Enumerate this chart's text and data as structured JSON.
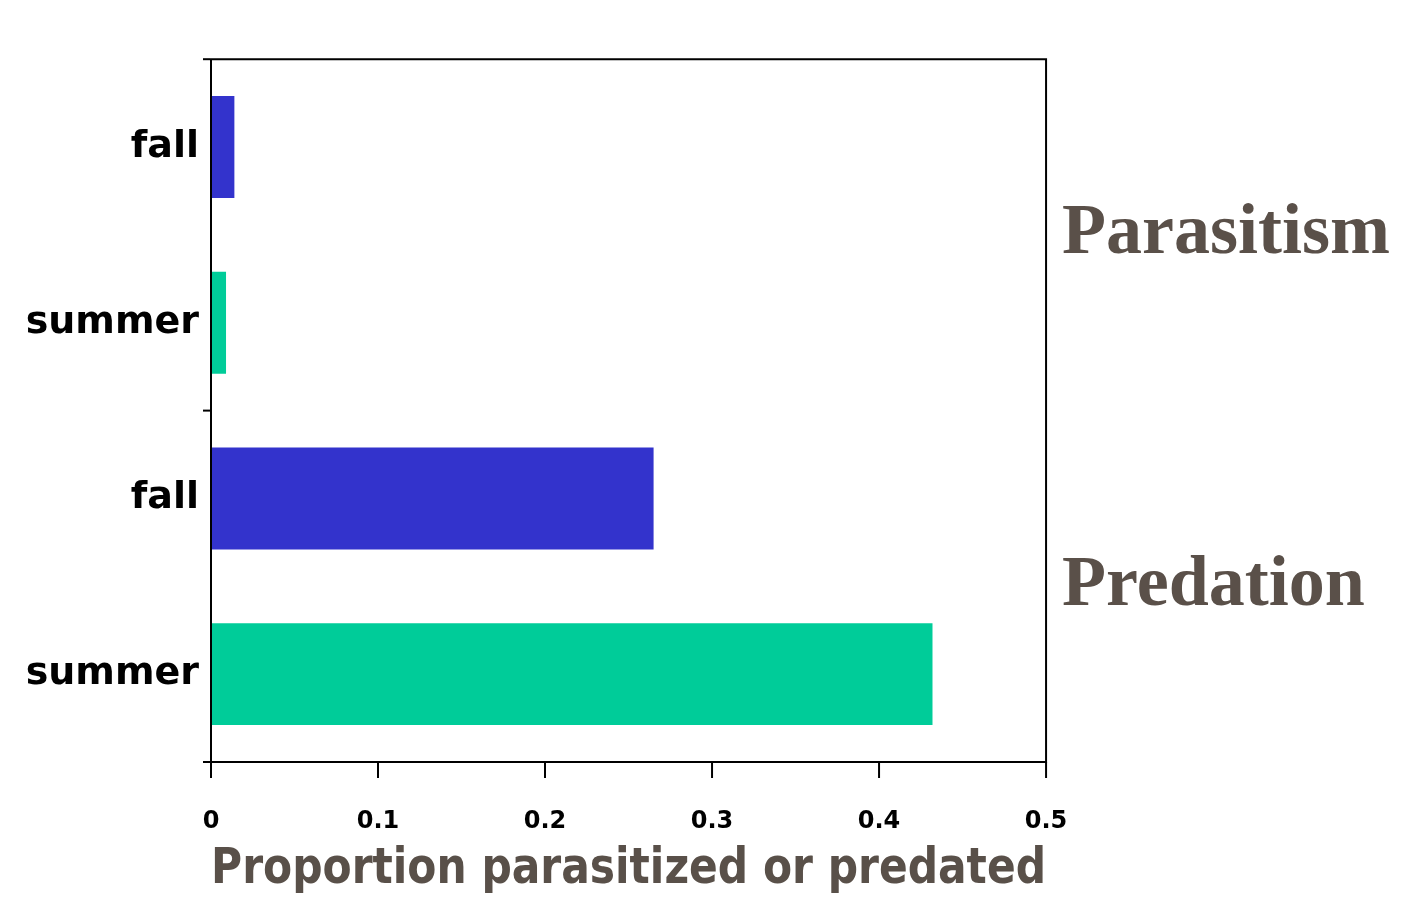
{
  "chart_data": {
    "type": "bar",
    "orientation": "horizontal",
    "xlabel": "Proportion parasitized or predated",
    "categories": [
      "Parasitism",
      "Predation"
    ],
    "series": [
      {
        "name": "fall",
        "color": "#3333cc",
        "values": [
          0.014,
          0.265
        ]
      },
      {
        "name": "summer",
        "color": "#00cc99",
        "values": [
          0.009,
          0.432
        ]
      }
    ],
    "xlim": [
      0,
      0.5
    ],
    "xticks": [
      0,
      0.1,
      0.2,
      0.3,
      0.4,
      0.5
    ],
    "grid": false,
    "legend": false
  }
}
